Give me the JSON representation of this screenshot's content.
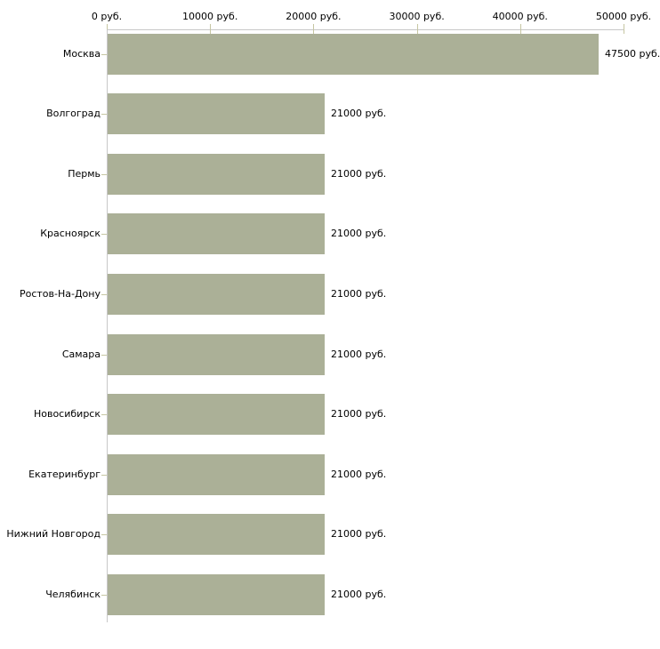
{
  "chart_data": {
    "type": "bar",
    "orientation": "horizontal",
    "title": "",
    "xlabel": "",
    "ylabel": "",
    "unit": "руб.",
    "categories": [
      "Москва",
      "Волгоград",
      "Пермь",
      "Красноярск",
      "Ростов-На-Дону",
      "Самара",
      "Новосибирск",
      "Екатеринбург",
      "Нижний Новгород",
      "Челябинск"
    ],
    "values": [
      47500,
      21000,
      21000,
      21000,
      21000,
      21000,
      21000,
      21000,
      21000,
      21000
    ],
    "value_labels": [
      "47500 руб.",
      "21000 руб.",
      "21000 руб.",
      "21000 руб.",
      "21000 руб.",
      "21000 руб.",
      "21000 руб.",
      "21000 руб.",
      "21000 руб.",
      "21000 руб."
    ],
    "xlim": [
      0,
      50000
    ],
    "x_ticks": [
      0,
      10000,
      20000,
      30000,
      40000,
      50000
    ],
    "x_tick_labels": [
      "0 руб.",
      "10000 руб.",
      "20000 руб.",
      "30000 руб.",
      "40000 руб.",
      "50000 руб."
    ],
    "grid": false,
    "legend": null,
    "axis_position": "top",
    "colors": {
      "bar": "#abb097",
      "axis_line": "#c8c8c8",
      "tick": "#c6c6a2",
      "text": "#000000",
      "background": "#ffffff"
    }
  }
}
